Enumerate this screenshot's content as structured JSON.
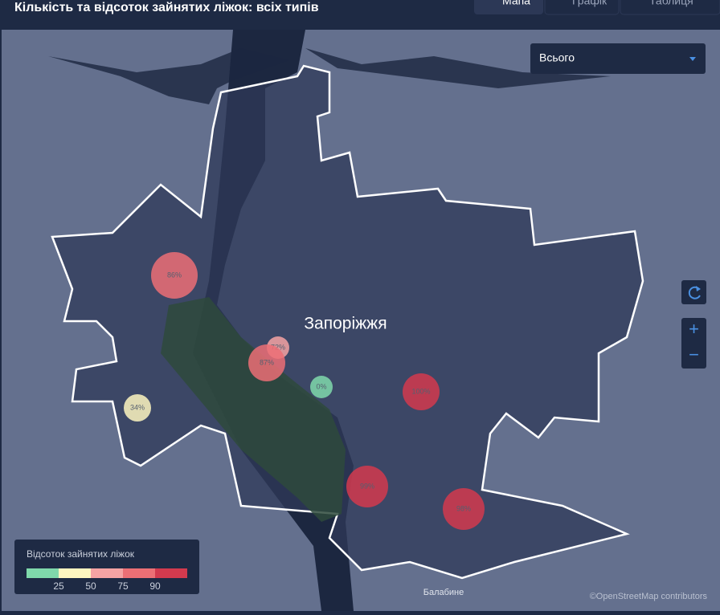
{
  "header": {
    "title": "Кількість та відсоток зайнятих ліжок: всіх типів",
    "tabs": [
      "Мапа",
      "Графік",
      "Таблиця"
    ]
  },
  "filter": {
    "selected": "Всього"
  },
  "map": {
    "city_label": "Запоріжжя",
    "place_label": "Балабине",
    "attribution": "©OpenStreetMap contributors",
    "controls": {
      "zoom_in": "+",
      "zoom_out": "−"
    },
    "bubbles": [
      {
        "value": 86,
        "label": "86%"
      },
      {
        "value": 72,
        "label": "72%"
      },
      {
        "value": 87,
        "label": "87%"
      },
      {
        "value": 0,
        "label": "0%"
      },
      {
        "value": 100,
        "label": "100%"
      },
      {
        "value": 34,
        "label": "34%"
      },
      {
        "value": 99,
        "label": "99%"
      },
      {
        "value": 98,
        "label": "98%"
      }
    ]
  },
  "legend": {
    "title": "Відсоток зайнятих ліжок",
    "ticks": [
      25,
      50,
      75,
      90
    ],
    "colors": [
      "#7fd9ab",
      "#fdf6c0",
      "#f5a3a3",
      "#ec6f75",
      "#d23a4e"
    ]
  }
}
